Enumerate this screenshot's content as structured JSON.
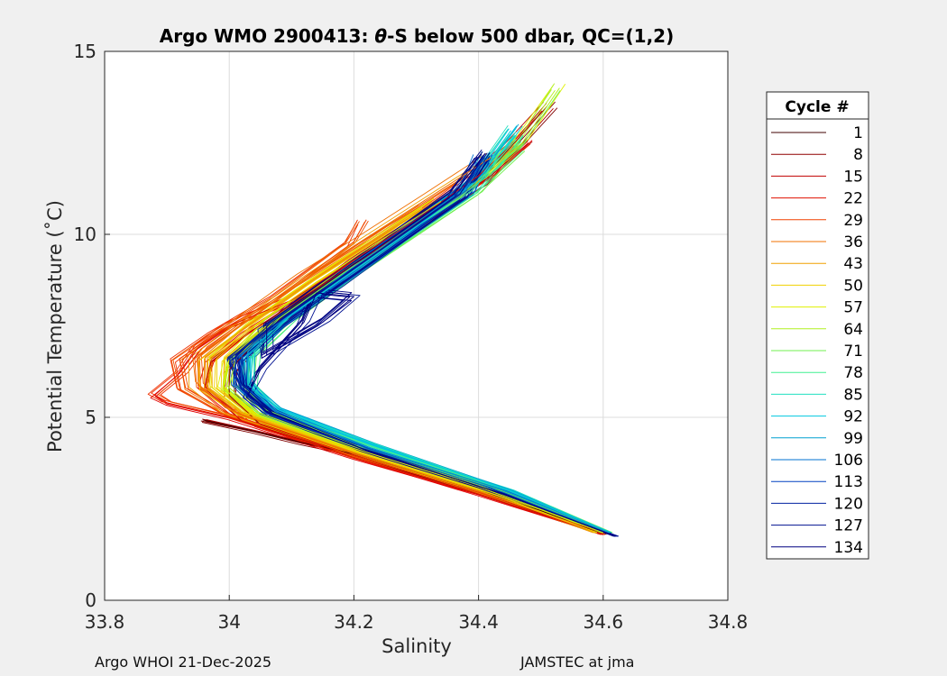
{
  "chart_data": {
    "type": "line",
    "title_prefix": "Argo WMO 2900413: ",
    "title_theta": "θ",
    "title_suffix": "-S below 500 dbar,  QC=(1,2)",
    "xlabel": "Salinity",
    "ylabel": "Potential Temperature (˚C)",
    "xlim": [
      33.8,
      34.8
    ],
    "ylim": [
      0,
      15
    ],
    "xticks": [
      "33.8",
      "34",
      "34.2",
      "34.4",
      "34.6",
      "34.8"
    ],
    "yticks": [
      "0",
      "5",
      "10",
      "15"
    ],
    "grid": true,
    "legend_title": "Cycle #",
    "legend_position": "right-outside",
    "colormap": [
      "#800000",
      "#b00000",
      "#e00000",
      "#f03000",
      "#f05000",
      "#f07000",
      "#f0a000",
      "#f0d000",
      "#e0f000",
      "#b0f020",
      "#70f050",
      "#40f090",
      "#20e0c0",
      "#00c0e0",
      "#00a0d0",
      "#0070d0",
      "#0040c0",
      "#0020a0",
      "#001090",
      "#000080"
    ],
    "series": [
      {
        "name": "1",
        "color": "#400000",
        "points": [
          [
            33.96,
            4.92
          ],
          [
            34.04,
            4.62
          ],
          [
            34.12,
            4.3
          ],
          [
            34.2,
            4.0
          ],
          [
            34.3,
            3.5
          ],
          [
            34.4,
            3.0
          ],
          [
            34.5,
            2.45
          ],
          [
            34.6,
            1.8
          ]
        ]
      },
      {
        "name": "8",
        "color": "#900000",
        "points": [
          [
            34.6,
            1.8
          ],
          [
            34.4,
            2.9
          ],
          [
            34.2,
            3.95
          ],
          [
            34.05,
            4.8
          ],
          [
            34.0,
            5.6
          ],
          [
            34.0,
            6.3
          ],
          [
            34.04,
            7.0
          ],
          [
            34.1,
            8.0
          ],
          [
            34.2,
            9.2
          ],
          [
            34.3,
            10.3
          ],
          [
            34.4,
            11.4
          ],
          [
            34.51,
            13.5
          ]
        ]
      },
      {
        "name": "15",
        "color": "#c00000",
        "points": [
          [
            34.6,
            1.8
          ],
          [
            34.4,
            2.95
          ],
          [
            34.2,
            3.95
          ],
          [
            34.02,
            4.9
          ],
          [
            33.96,
            5.8
          ],
          [
            33.97,
            6.5
          ],
          [
            34.03,
            7.3
          ],
          [
            34.12,
            8.3
          ],
          [
            34.22,
            9.4
          ],
          [
            34.32,
            10.5
          ],
          [
            34.42,
            11.6
          ],
          [
            34.48,
            12.5
          ]
        ]
      },
      {
        "name": "22",
        "color": "#e01000",
        "points": [
          [
            34.6,
            1.8
          ],
          [
            34.4,
            2.9
          ],
          [
            34.2,
            3.9
          ],
          [
            34.0,
            5.0
          ],
          [
            33.9,
            5.4
          ],
          [
            33.88,
            5.6
          ],
          [
            33.92,
            6.2
          ],
          [
            33.95,
            6.9
          ],
          [
            34.0,
            7.5
          ],
          [
            34.1,
            8.2
          ],
          [
            34.2,
            9.3
          ],
          [
            34.3,
            10.4
          ],
          [
            34.4,
            11.6
          ],
          [
            34.45,
            12.4
          ]
        ]
      },
      {
        "name": "29",
        "color": "#f04000",
        "points": [
          [
            34.6,
            1.85
          ],
          [
            34.4,
            2.95
          ],
          [
            34.2,
            3.95
          ],
          [
            34.0,
            5.1
          ],
          [
            33.93,
            5.8
          ],
          [
            33.92,
            6.6
          ],
          [
            33.98,
            7.3
          ],
          [
            34.08,
            8.3
          ],
          [
            34.2,
            9.8
          ],
          [
            34.22,
            10.4
          ]
        ]
      },
      {
        "name": "36",
        "color": "#f07000",
        "points": [
          [
            34.59,
            1.85
          ],
          [
            34.4,
            3.0
          ],
          [
            34.2,
            4.0
          ],
          [
            34.0,
            5.2
          ],
          [
            33.95,
            5.9
          ],
          [
            33.95,
            6.7
          ],
          [
            34.02,
            7.6
          ],
          [
            34.12,
            8.8
          ],
          [
            34.22,
            9.9
          ],
          [
            34.32,
            11.0
          ],
          [
            34.42,
            12.1
          ]
        ]
      },
      {
        "name": "43",
        "color": "#f0a000",
        "points": [
          [
            34.59,
            1.85
          ],
          [
            34.4,
            3.0
          ],
          [
            34.2,
            4.05
          ],
          [
            34.02,
            5.1
          ],
          [
            33.96,
            5.8
          ],
          [
            33.96,
            6.6
          ],
          [
            34.02,
            7.4
          ],
          [
            34.12,
            8.6
          ],
          [
            34.22,
            9.7
          ],
          [
            34.32,
            10.8
          ]
        ]
      },
      {
        "name": "50",
        "color": "#f0d000",
        "points": [
          [
            34.59,
            1.85
          ],
          [
            34.4,
            3.05
          ],
          [
            34.2,
            4.1
          ],
          [
            34.03,
            5.1
          ],
          [
            33.98,
            5.8
          ],
          [
            33.98,
            6.6
          ],
          [
            34.04,
            7.5
          ],
          [
            34.14,
            8.7
          ],
          [
            34.24,
            9.8
          ],
          [
            34.34,
            10.9
          ]
        ]
      },
      {
        "name": "57",
        "color": "#e0f000",
        "points": [
          [
            34.6,
            1.85
          ],
          [
            34.4,
            3.1
          ],
          [
            34.2,
            4.15
          ],
          [
            34.04,
            5.1
          ],
          [
            33.99,
            5.8
          ],
          [
            34.0,
            6.6
          ],
          [
            34.06,
            7.5
          ],
          [
            34.16,
            8.7
          ],
          [
            34.26,
            9.8
          ],
          [
            34.36,
            10.9
          ]
        ]
      },
      {
        "name": "64",
        "color": "#b0f020",
        "points": [
          [
            34.6,
            1.85
          ],
          [
            34.4,
            3.15
          ],
          [
            34.2,
            4.2
          ],
          [
            34.05,
            5.1
          ],
          [
            34.0,
            5.8
          ],
          [
            34.01,
            6.6
          ],
          [
            34.07,
            7.6
          ],
          [
            34.17,
            8.8
          ],
          [
            34.27,
            9.9
          ],
          [
            34.37,
            11.0
          ],
          [
            34.47,
            12.5
          ],
          [
            34.53,
            14.0
          ]
        ]
      },
      {
        "name": "71",
        "color": "#70f050",
        "points": [
          [
            34.61,
            1.85
          ],
          [
            34.42,
            3.1
          ],
          [
            34.2,
            4.25
          ],
          [
            34.06,
            5.2
          ],
          [
            34.02,
            5.9
          ],
          [
            34.02,
            6.7
          ],
          [
            34.08,
            7.7
          ],
          [
            34.18,
            8.9
          ],
          [
            34.28,
            10.0
          ],
          [
            34.38,
            11.2
          ],
          [
            34.46,
            12.4
          ]
        ]
      },
      {
        "name": "78",
        "color": "#40f090",
        "points": [
          [
            34.61,
            1.85
          ],
          [
            34.45,
            3.0
          ],
          [
            34.22,
            4.25
          ],
          [
            34.07,
            5.2
          ],
          [
            34.03,
            5.9
          ],
          [
            34.03,
            6.7
          ],
          [
            34.09,
            7.7
          ],
          [
            34.19,
            8.9
          ],
          [
            34.29,
            10.1
          ],
          [
            34.39,
            11.2
          ],
          [
            34.46,
            12.6
          ]
        ]
      },
      {
        "name": "85",
        "color": "#20e0c0",
        "points": [
          [
            34.61,
            1.85
          ],
          [
            34.45,
            3.0
          ],
          [
            34.23,
            4.3
          ],
          [
            34.08,
            5.2
          ],
          [
            34.04,
            5.9
          ],
          [
            34.04,
            6.8
          ],
          [
            34.1,
            7.8
          ],
          [
            34.2,
            9.0
          ],
          [
            34.3,
            10.2
          ],
          [
            34.4,
            11.4
          ],
          [
            34.46,
            12.8
          ]
        ]
      },
      {
        "name": "92",
        "color": "#00c8e0",
        "points": [
          [
            34.61,
            1.85
          ],
          [
            34.45,
            3.0
          ],
          [
            34.23,
            4.25
          ],
          [
            34.08,
            5.2
          ],
          [
            34.03,
            5.9
          ],
          [
            34.03,
            6.8
          ],
          [
            34.1,
            7.8
          ],
          [
            34.2,
            9.0
          ],
          [
            34.3,
            10.2
          ],
          [
            34.4,
            11.5
          ],
          [
            34.46,
            12.9
          ]
        ]
      },
      {
        "name": "99",
        "color": "#00a0d0",
        "points": [
          [
            34.61,
            1.85
          ],
          [
            34.44,
            3.0
          ],
          [
            34.22,
            4.2
          ],
          [
            34.07,
            5.2
          ],
          [
            34.03,
            5.9
          ],
          [
            34.03,
            6.7
          ],
          [
            34.09,
            7.7
          ],
          [
            34.19,
            9.0
          ],
          [
            34.29,
            10.2
          ],
          [
            34.39,
            11.4
          ]
        ]
      },
      {
        "name": "106",
        "color": "#0070d0",
        "points": [
          [
            34.62,
            1.75
          ],
          [
            34.44,
            2.95
          ],
          [
            34.22,
            4.15
          ],
          [
            34.07,
            5.2
          ],
          [
            34.02,
            5.9
          ],
          [
            34.02,
            6.7
          ],
          [
            34.08,
            7.6
          ],
          [
            34.18,
            8.8
          ],
          [
            34.28,
            10.0
          ],
          [
            34.38,
            11.2
          ],
          [
            34.41,
            12.2
          ]
        ]
      },
      {
        "name": "113",
        "color": "#0040c0",
        "points": [
          [
            34.62,
            1.75
          ],
          [
            34.44,
            2.9
          ],
          [
            34.22,
            4.1
          ],
          [
            34.06,
            5.1
          ],
          [
            34.01,
            5.9
          ],
          [
            34.01,
            6.6
          ],
          [
            34.07,
            7.5
          ],
          [
            34.17,
            8.7
          ],
          [
            34.27,
            9.9
          ],
          [
            34.37,
            11.1
          ],
          [
            34.41,
            12.0
          ]
        ]
      },
      {
        "name": "120",
        "color": "#0020a0",
        "points": [
          [
            34.62,
            1.75
          ],
          [
            34.44,
            2.9
          ],
          [
            34.22,
            4.1
          ],
          [
            34.07,
            5.1
          ],
          [
            34.02,
            5.8
          ],
          [
            34.0,
            6.6
          ],
          [
            34.06,
            7.4
          ],
          [
            34.16,
            8.6
          ],
          [
            34.26,
            9.8
          ],
          [
            34.36,
            11.0
          ],
          [
            34.41,
            12.1
          ]
        ]
      },
      {
        "name": "127",
        "color": "#001090",
        "points": [
          [
            34.62,
            1.75
          ],
          [
            34.44,
            2.9
          ],
          [
            34.22,
            4.1
          ],
          [
            34.07,
            5.1
          ],
          [
            34.02,
            5.9
          ],
          [
            34.01,
            6.7
          ],
          [
            34.07,
            7.5
          ],
          [
            34.17,
            8.7
          ],
          [
            34.27,
            9.9
          ],
          [
            34.37,
            11.1
          ],
          [
            34.41,
            12.2
          ]
        ]
      },
      {
        "name": "134",
        "color": "#000080",
        "points": [
          [
            34.62,
            1.75
          ],
          [
            34.44,
            2.9
          ],
          [
            34.22,
            4.1
          ],
          [
            34.07,
            5.1
          ],
          [
            34.03,
            5.6
          ],
          [
            34.05,
            6.3
          ],
          [
            34.12,
            7.6
          ],
          [
            34.14,
            8.4
          ],
          [
            34.2,
            8.3
          ],
          [
            34.15,
            7.6
          ],
          [
            34.06,
            6.7
          ],
          [
            34.06,
            7.5
          ],
          [
            34.16,
            8.7
          ],
          [
            34.26,
            9.9
          ],
          [
            34.36,
            11.1
          ],
          [
            34.41,
            12.2
          ]
        ]
      }
    ]
  },
  "footer": {
    "left": "Argo WHOI 21-Dec-2025",
    "right": "JAMSTEC at jma"
  }
}
